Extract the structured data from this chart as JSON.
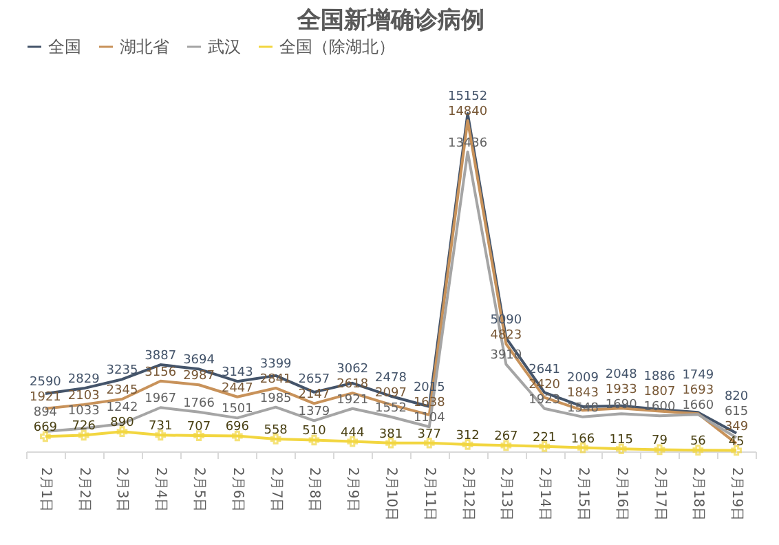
{
  "chart_data": {
    "type": "line",
    "title": "全国新增确诊病例",
    "categories": [
      "2月1日",
      "2月2日",
      "2月3日",
      "2月4日",
      "2月5日",
      "2月6日",
      "2月7日",
      "2月8日",
      "2月9日",
      "2月10日",
      "2月11日",
      "2月12日",
      "2月13日",
      "2月14日",
      "2月15日",
      "2月16日",
      "2月17日",
      "2月18日",
      "2月19日"
    ],
    "series": [
      {
        "name": "全国",
        "color": "#44546a",
        "values": [
          2590,
          2829,
          3235,
          3887,
          3694,
          3143,
          3399,
          2657,
          3062,
          2478,
          2015,
          15152,
          5090,
          2641,
          2009,
          2048,
          1886,
          1749,
          820
        ]
      },
      {
        "name": "湖北省",
        "color": "#c8925a",
        "values": [
          1921,
          2103,
          2345,
          3156,
          2987,
          2447,
          2841,
          2147,
          2618,
          2097,
          1638,
          14840,
          4823,
          2420,
          1843,
          1933,
          1807,
          1693,
          349
        ]
      },
      {
        "name": "武汉",
        "color": "#a5a5a5",
        "values": [
          894,
          1033,
          1242,
          1967,
          1766,
          1501,
          1985,
          1379,
          1921,
          1552,
          1104,
          13436,
          3910,
          1923,
          1548,
          1690,
          1600,
          1660,
          615
        ]
      },
      {
        "name": "全国（除湖北）",
        "color": "#f2d640",
        "marker": "cross",
        "values": [
          669,
          726,
          890,
          731,
          707,
          696,
          558,
          510,
          444,
          381,
          377,
          312,
          267,
          221,
          166,
          115,
          79,
          56,
          45
        ]
      }
    ],
    "data_labels": true,
    "legend": "top",
    "grid": false,
    "line_style": "solid"
  }
}
